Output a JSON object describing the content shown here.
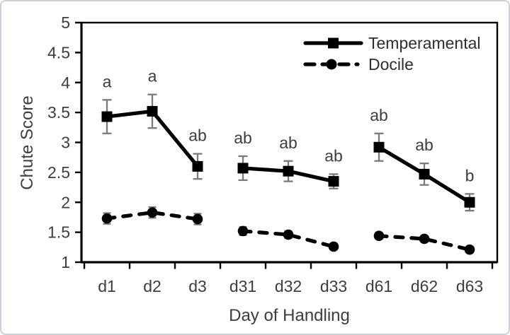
{
  "figure": {
    "background": "#ffffff",
    "border_color": "#ccd1d6"
  },
  "chart_data": {
    "type": "line",
    "title": "",
    "xlabel": "Day of Handling",
    "ylabel": "Chute Score",
    "categories": [
      "d1",
      "d2",
      "d3",
      "d31",
      "d32",
      "d33",
      "d61",
      "d62",
      "d63"
    ],
    "ylim": [
      1,
      5
    ],
    "yticks": [
      1,
      1.5,
      2,
      2.5,
      3,
      3.5,
      4,
      4.5,
      5
    ],
    "grid": false,
    "legend_position": "top-right-inside",
    "segment_groups": [
      [
        0,
        1,
        2
      ],
      [
        3,
        4,
        5
      ],
      [
        6,
        7,
        8
      ]
    ],
    "series": [
      {
        "name": "Temperamental",
        "line_style": "solid",
        "marker": "square",
        "color": "#000000",
        "values": [
          3.43,
          3.52,
          2.6,
          2.57,
          2.52,
          2.35,
          2.92,
          2.47,
          2.0
        ],
        "errors": [
          0.28,
          0.28,
          0.21,
          0.2,
          0.17,
          0.12,
          0.23,
          0.18,
          0.14
        ]
      },
      {
        "name": "Docile",
        "line_style": "dashed",
        "marker": "circle",
        "color": "#000000",
        "values": [
          1.73,
          1.83,
          1.72,
          1.52,
          1.46,
          1.26,
          1.44,
          1.39,
          1.21
        ],
        "errors": [
          0.09,
          0.09,
          0.09,
          0.07,
          0.06,
          0.05,
          0.05,
          0.05,
          0.05
        ]
      }
    ],
    "significance_labels": {
      "series": "Temperamental",
      "labels": [
        "a",
        "a",
        "ab",
        "ab",
        "ab",
        "ab",
        "ab",
        "ab",
        "b"
      ]
    },
    "error_bar_color": "#7a7a7a",
    "axis_color": "#000000",
    "text_color": "#3d3d3d"
  }
}
